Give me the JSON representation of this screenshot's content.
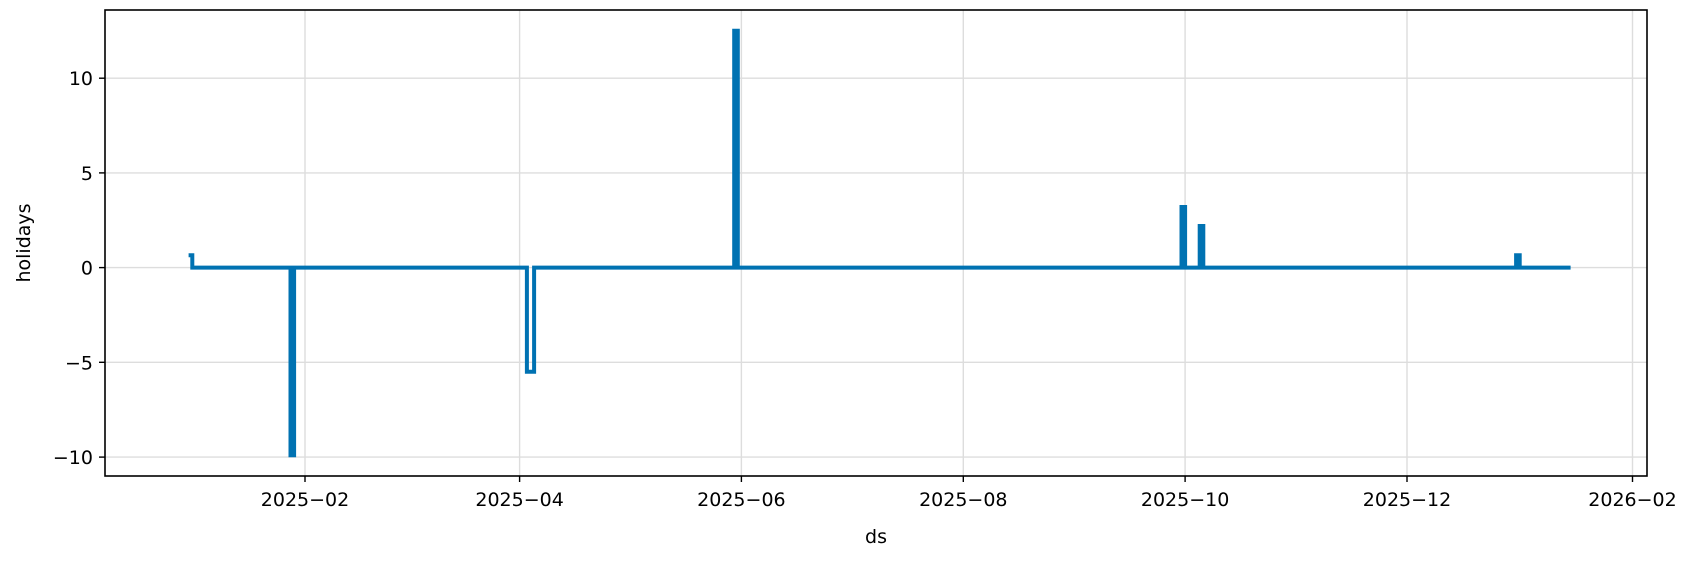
{
  "chart_data": {
    "type": "line",
    "title": "",
    "xlabel": "ds",
    "ylabel": "holidays",
    "x_type": "date",
    "xlim": [
      "2024-12-08",
      "2026-02-05"
    ],
    "ylim": [
      -11,
      13.6
    ],
    "xticks": [
      "2025-02-01",
      "2025-04-01",
      "2025-06-01",
      "2025-08-01",
      "2025-10-01",
      "2025-12-01",
      "2026-02-01"
    ],
    "xtick_labels": [
      "2025−02",
      "2025−04",
      "2025−06",
      "2025−08",
      "2025−10",
      "2025−12",
      "2026−02"
    ],
    "yticks": [
      10,
      5,
      0,
      -5,
      -10
    ],
    "ytick_labels": [
      "10",
      "5",
      "0",
      "−5",
      "−10"
    ],
    "grid": true,
    "line_color": "#0072B2",
    "series": [
      {
        "points": [
          [
            "2024-12-31",
            0.65
          ],
          [
            "2025-01-01",
            0.65
          ],
          [
            "2025-01-01",
            0
          ],
          [
            "2025-01-28",
            0
          ],
          [
            "2025-01-28",
            -9.9
          ],
          [
            "2025-01-29",
            -9.9
          ],
          [
            "2025-01-29",
            0
          ],
          [
            "2025-04-03",
            0
          ],
          [
            "2025-04-03",
            -5.5
          ],
          [
            "2025-04-05",
            -5.5
          ],
          [
            "2025-04-05",
            0
          ],
          [
            "2025-05-30",
            0
          ],
          [
            "2025-05-30",
            12.5
          ],
          [
            "2025-05-31",
            12.5
          ],
          [
            "2025-05-31",
            0
          ],
          [
            "2025-09-30",
            0
          ],
          [
            "2025-09-30",
            3.2
          ],
          [
            "2025-10-01",
            3.2
          ],
          [
            "2025-10-01",
            0
          ],
          [
            "2025-10-05",
            0
          ],
          [
            "2025-10-05",
            2.2
          ],
          [
            "2025-10-06",
            2.2
          ],
          [
            "2025-10-06",
            0
          ],
          [
            "2025-12-31",
            0
          ],
          [
            "2025-12-31",
            0.65
          ],
          [
            "2026-01-01",
            0.65
          ],
          [
            "2026-01-01",
            0
          ],
          [
            "2026-01-15",
            0
          ]
        ]
      }
    ]
  }
}
